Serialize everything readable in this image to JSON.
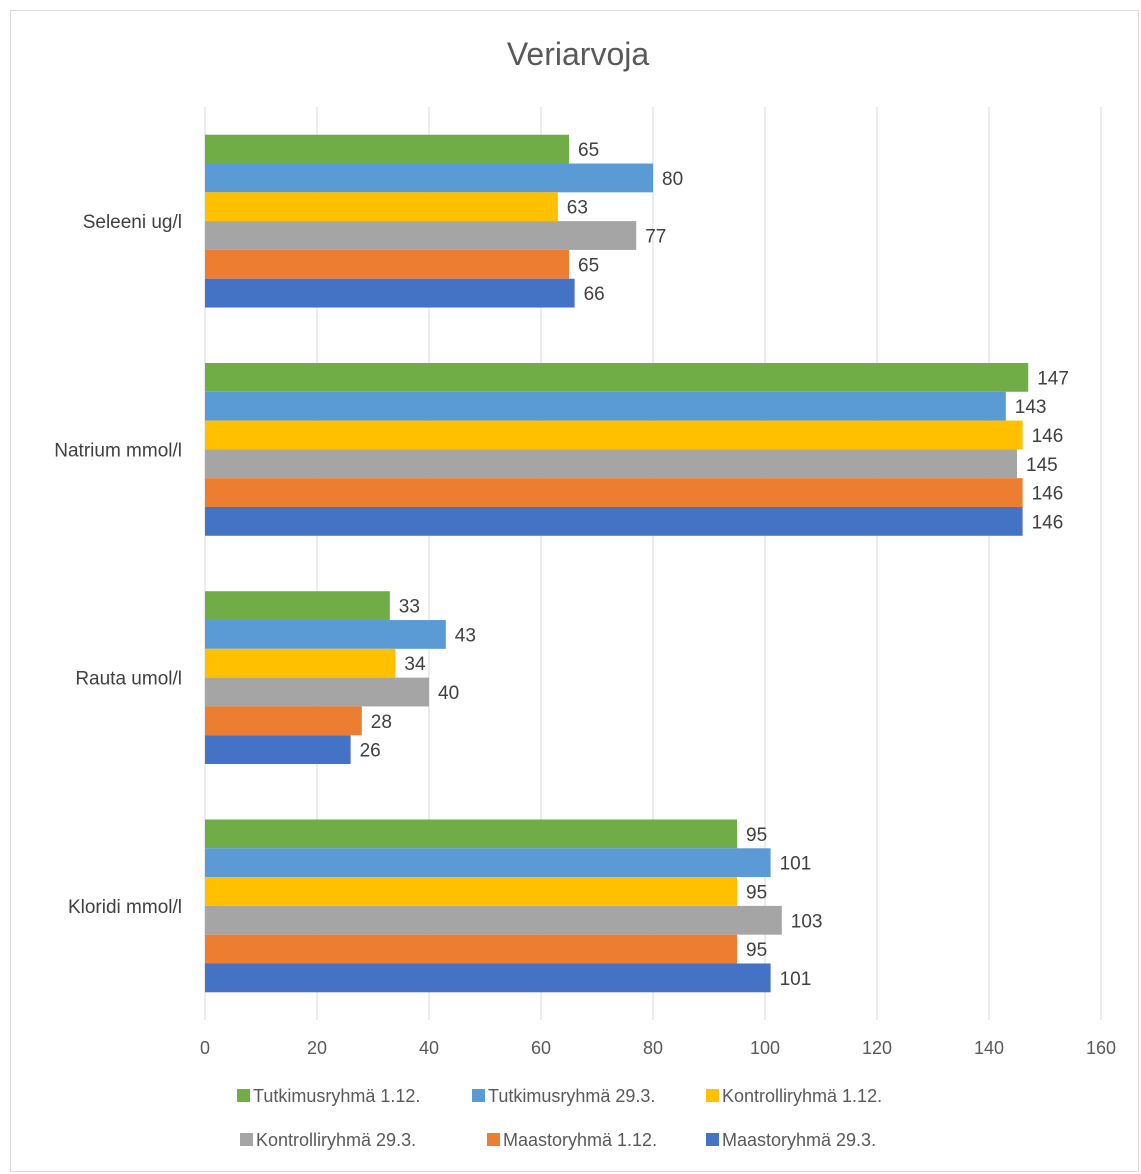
{
  "chart_data": {
    "type": "bar",
    "orientation": "horizontal",
    "title": "Veriarvoja",
    "xlabel": "",
    "ylabel": "",
    "xlim": [
      0,
      160
    ],
    "x_ticks": [
      0,
      20,
      40,
      60,
      80,
      100,
      120,
      140,
      160
    ],
    "grid": true,
    "legend_position": "bottom",
    "categories": [
      "Seleeni ug/l",
      "Natrium mmol/l",
      "Rauta umol/l",
      "Kloridi mmol/l"
    ],
    "series": [
      {
        "name": "Tutkimusryhmä 1.12.",
        "color": "#70ad47",
        "values": [
          65,
          147,
          33,
          95
        ]
      },
      {
        "name": "Tutkimusryhmä 29.3.",
        "color": "#5b9bd5",
        "values": [
          80,
          143,
          43,
          101
        ]
      },
      {
        "name": "Kontrolliryhmä 1.12.",
        "color": "#ffc000",
        "values": [
          63,
          146,
          34,
          95
        ]
      },
      {
        "name": "Kontrolliryhmä 29.3.",
        "color": "#a5a5a5",
        "values": [
          77,
          145,
          40,
          103
        ]
      },
      {
        "name": "Maastoryhmä 1.12.",
        "color": "#ed7d31",
        "values": [
          65,
          146,
          28,
          95
        ]
      },
      {
        "name": "Maastoryhmä 29.3.",
        "color": "#4472c4",
        "values": [
          66,
          146,
          26,
          101
        ]
      }
    ]
  }
}
